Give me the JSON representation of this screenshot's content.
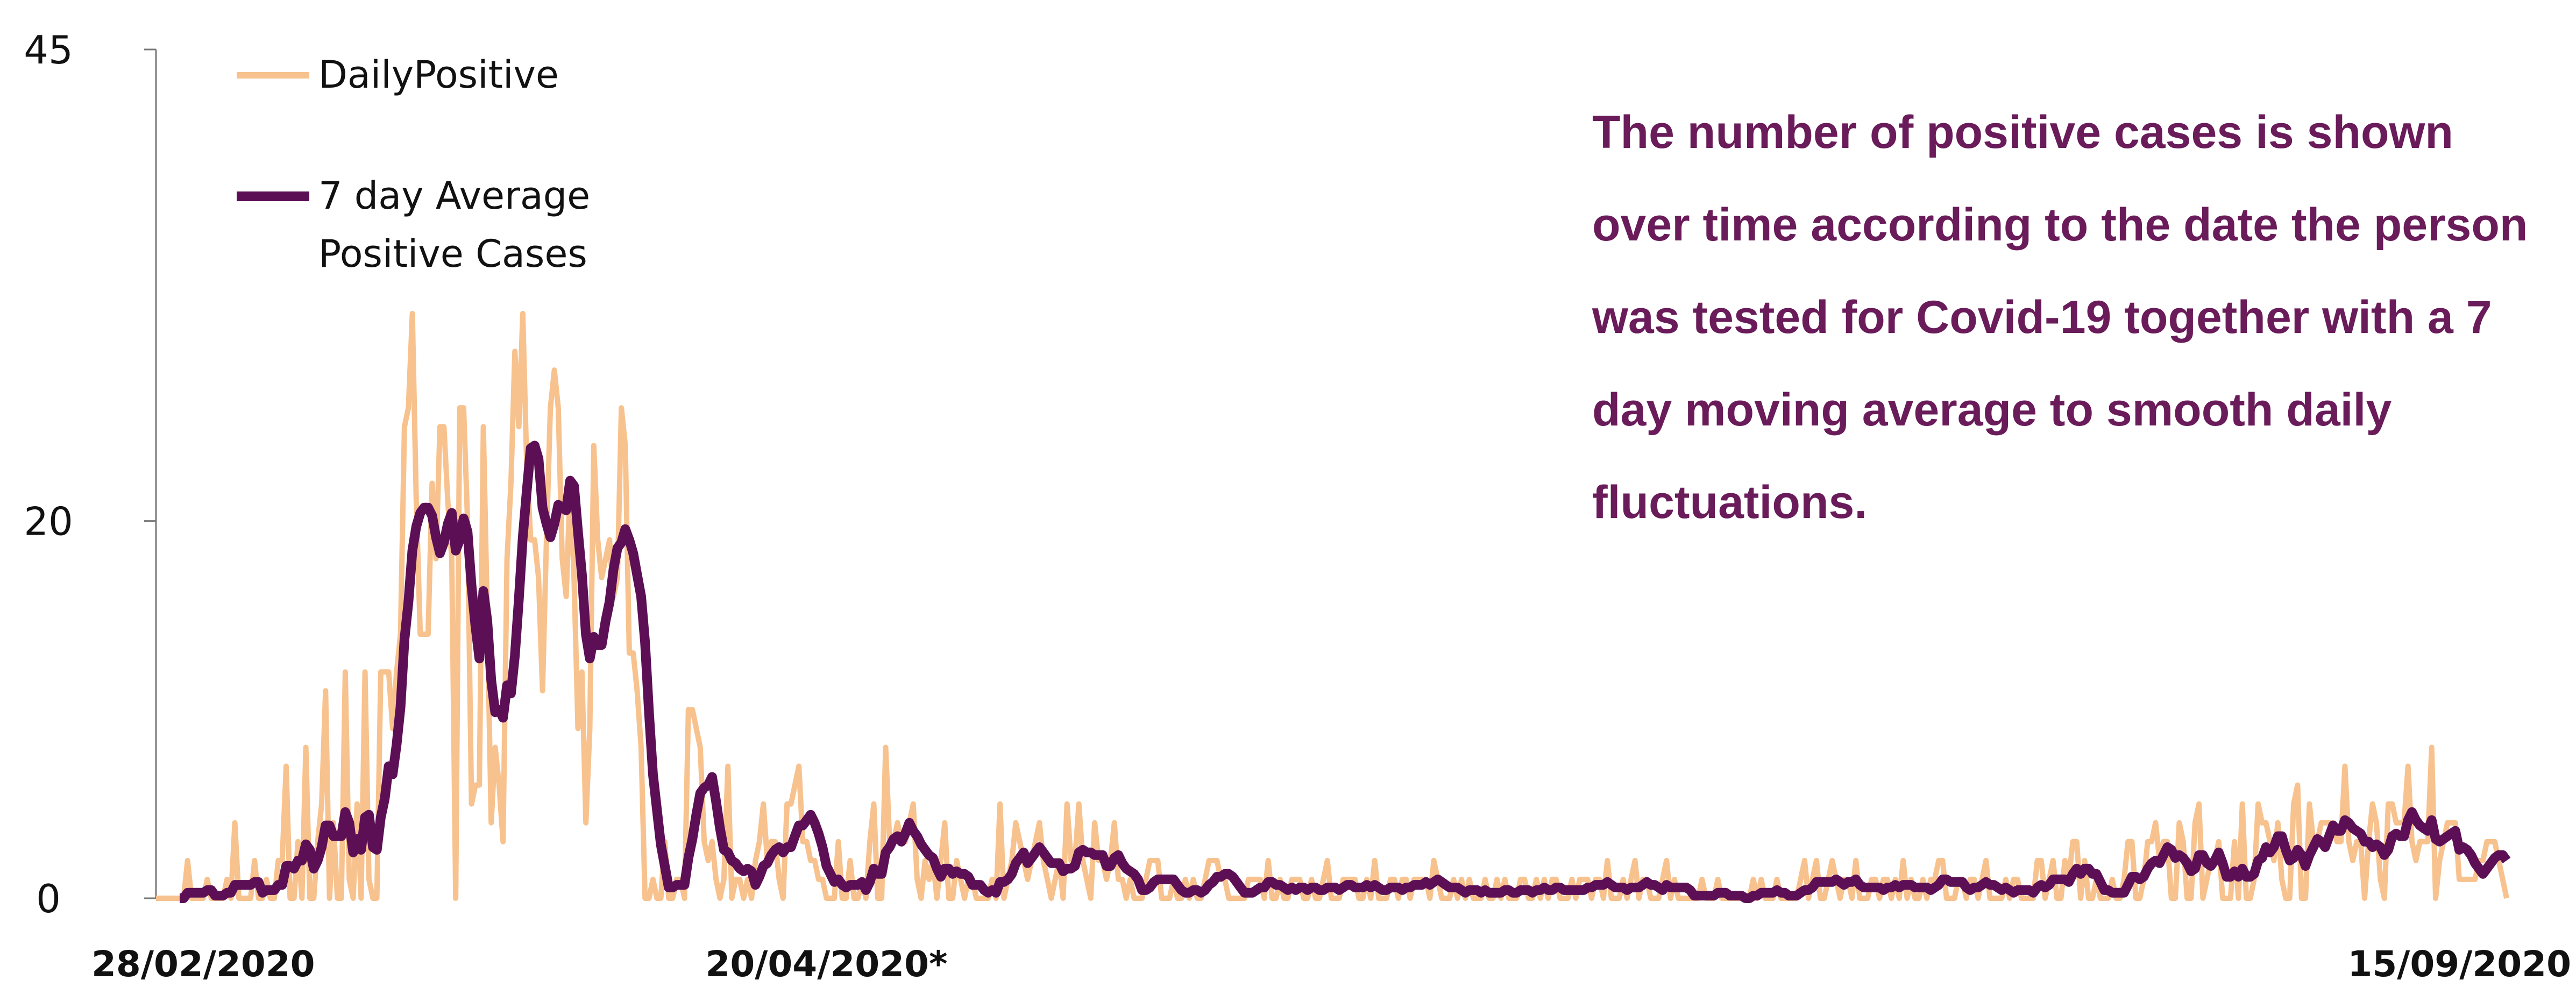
{
  "chart_data": {
    "type": "line",
    "title": "",
    "xlabel": "",
    "ylabel": "",
    "ylim": [
      0,
      45
    ],
    "y_ticks": [
      0,
      20,
      45
    ],
    "x_tick_labels": [
      "28/02/2020",
      "20/04/2020*",
      "15/09/2020"
    ],
    "x_start": "2020-02-28",
    "x_end": "2020-09-15",
    "grid": false,
    "legend": "top-left",
    "annotation": "The number of positive cases is shown over time according to the date the person was tested for Covid-19 together with a 7 day moving average to smooth daily fluctuations.",
    "series": [
      {
        "name": "DailyPositive",
        "color": "#f7c28e",
        "values": [
          0,
          0,
          0,
          0,
          0,
          0,
          0,
          0,
          2,
          0,
          0,
          0,
          0,
          1,
          0,
          0,
          0,
          0,
          1,
          0,
          4,
          0,
          0,
          0,
          0,
          2,
          0,
          0,
          1,
          0,
          0,
          2,
          2,
          7,
          0,
          0,
          3,
          0,
          8,
          0,
          0,
          3,
          5,
          11,
          0,
          4,
          0,
          0,
          12,
          1,
          0,
          5,
          0,
          12,
          1,
          0,
          0,
          12,
          12,
          12,
          9,
          12,
          14,
          25,
          26,
          31,
          21,
          14,
          14,
          14,
          22,
          18,
          25,
          25,
          21,
          18,
          0,
          26,
          26,
          20,
          5,
          6,
          6,
          25,
          15,
          4,
          8,
          6,
          3,
          18,
          22,
          29,
          25,
          31,
          23,
          19,
          19,
          17,
          11,
          19,
          26,
          28,
          26,
          18,
          16,
          22,
          17,
          9,
          12,
          4,
          9,
          24,
          19,
          17,
          18,
          19,
          16,
          17,
          26,
          24,
          13,
          13,
          11,
          8,
          0,
          0,
          1,
          0,
          0,
          3,
          0,
          0,
          1,
          1,
          0,
          10,
          10,
          9,
          8,
          3,
          2,
          3,
          1,
          0,
          1,
          7,
          0,
          1,
          1,
          0,
          1,
          0,
          2,
          3,
          5,
          2,
          3,
          3,
          1,
          0,
          5,
          5,
          6,
          7,
          3,
          3,
          2,
          2,
          1,
          1,
          0,
          0,
          0,
          3,
          0,
          0,
          2,
          0,
          0,
          1,
          0,
          3,
          5,
          0,
          0,
          8,
          3,
          3,
          4,
          3,
          3,
          4,
          5,
          1,
          0,
          2,
          1,
          2,
          0,
          2,
          4,
          0,
          0,
          2,
          1,
          0,
          1,
          1,
          0,
          0,
          0,
          0,
          1,
          0,
          5,
          0,
          1,
          2,
          4,
          3,
          2,
          1,
          2,
          3,
          4,
          2,
          1,
          0,
          1,
          2,
          0,
          5,
          2,
          2,
          5,
          2,
          1,
          0,
          4,
          2,
          2,
          1,
          2,
          4,
          1,
          1,
          0,
          1,
          0,
          0,
          0,
          1,
          2,
          2,
          2,
          0,
          0,
          0,
          1,
          0,
          0,
          1,
          0,
          1,
          0,
          0,
          1,
          2,
          2,
          2,
          1,
          1,
          0,
          0,
          0,
          0,
          0,
          1,
          1,
          1,
          1,
          0,
          2,
          0,
          0,
          1,
          0,
          0,
          1,
          1,
          1,
          0,
          0,
          1,
          0,
          0,
          1,
          2,
          0,
          0,
          0,
          1,
          1,
          1,
          1,
          0,
          0,
          1,
          0,
          2,
          0,
          0,
          0,
          1,
          1,
          0,
          1,
          1,
          0,
          1,
          1,
          1,
          1,
          0,
          2,
          1,
          0,
          0,
          0,
          1,
          0,
          1,
          0,
          1,
          0,
          0,
          0,
          1,
          0,
          0,
          1,
          0,
          1,
          0,
          0,
          0,
          1,
          1,
          0,
          0,
          1,
          0,
          1,
          0,
          1,
          1,
          0,
          0,
          0,
          1,
          0,
          1,
          1,
          1,
          0,
          1,
          1,
          0,
          2,
          0,
          0,
          0,
          1,
          0,
          1,
          2,
          0,
          1,
          1,
          0,
          0,
          0,
          1,
          2,
          0,
          1,
          0,
          0,
          0,
          0,
          0,
          0,
          1,
          0,
          0,
          0,
          1,
          0,
          0,
          0,
          0,
          0,
          0,
          0,
          0,
          1,
          0,
          1,
          0,
          0,
          0,
          1,
          0,
          0,
          0,
          0,
          0,
          1,
          2,
          0,
          1,
          2,
          0,
          0,
          1,
          2,
          1,
          0,
          1,
          1,
          0,
          2,
          0,
          0,
          0,
          1,
          1,
          0,
          1,
          1,
          0,
          1,
          0,
          2,
          0,
          1,
          0,
          0,
          1,
          0,
          1,
          1,
          2,
          2,
          0,
          0,
          0,
          1,
          1,
          0,
          1,
          1,
          0,
          1,
          2,
          0,
          0,
          0,
          0,
          1,
          0,
          1,
          1,
          0,
          0,
          0,
          0,
          2,
          2,
          0,
          1,
          2,
          0,
          0,
          2,
          1,
          3,
          3,
          0,
          2,
          0,
          0,
          1,
          0,
          0,
          0,
          1,
          0,
          0,
          1,
          3,
          3,
          0,
          0,
          1,
          3,
          3,
          4,
          2,
          3,
          3,
          0,
          0,
          4,
          3,
          0,
          0,
          4,
          5,
          0,
          1,
          2,
          2,
          3,
          0,
          0,
          0,
          3,
          0,
          5,
          0,
          0,
          1,
          5,
          4,
          4,
          3,
          2,
          4,
          1,
          0,
          0,
          5,
          6,
          0,
          0,
          5,
          3,
          3,
          4,
          4,
          4,
          4,
          3,
          3,
          7,
          3,
          2,
          3,
          3,
          0,
          3,
          5,
          4,
          1,
          0,
          5,
          5,
          4,
          4,
          4,
          7,
          3,
          2,
          3,
          3,
          3,
          8,
          0,
          2,
          3,
          4,
          4,
          4,
          1,
          1,
          1,
          1,
          1,
          2,
          2,
          3,
          3,
          3,
          2,
          1,
          0
        ],
        "values_note": "placeholder"
      },
      {
        "name": "7 day Average\nPositive Cases",
        "color": "#5c0f55",
        "values": []
      }
    ]
  }
}
